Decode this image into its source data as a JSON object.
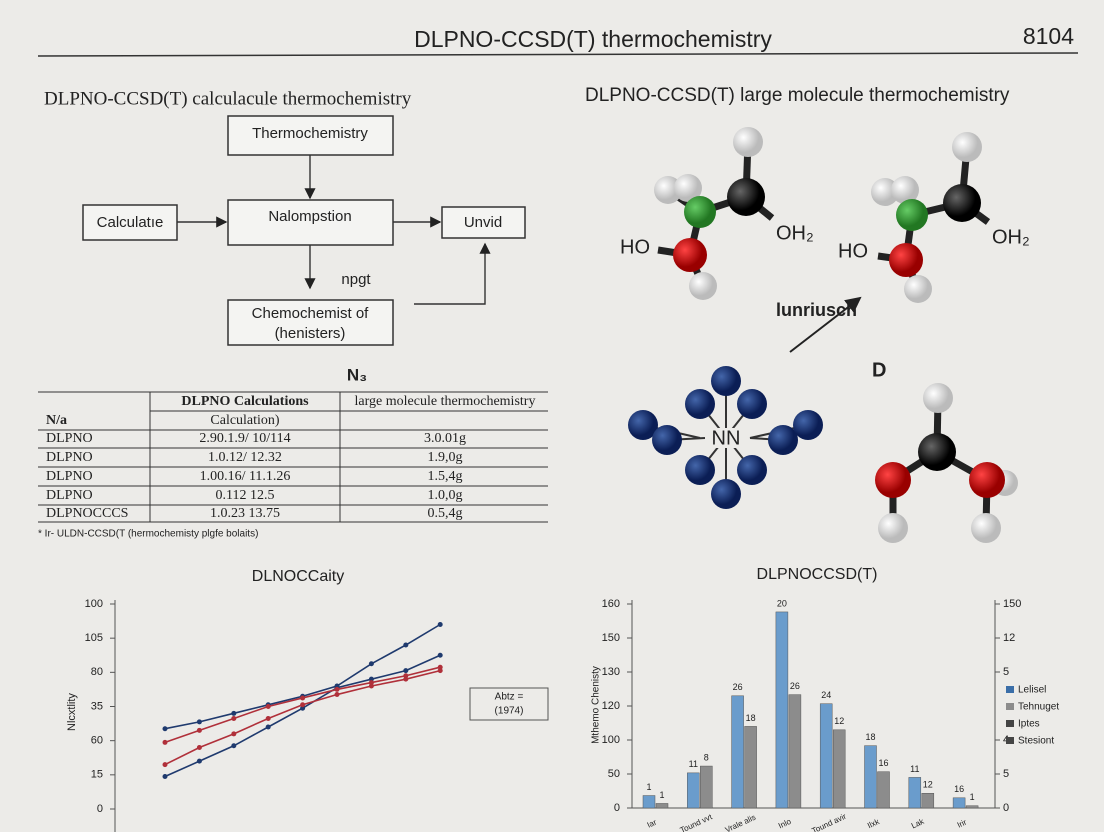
{
  "header": {
    "title": "DLPNO-CCSD(T) thermochemistry",
    "page": "8104"
  },
  "flowchart": {
    "heading": "DLPNO-CCSD(T) calculacule thermochemistry",
    "nodes": [
      [
        "Thermochemistry"
      ],
      [
        "Calculatıe"
      ],
      [
        "Nalompstion"
      ],
      [
        "Unvid"
      ],
      [
        "Chemochemist of",
        "(henisters)"
      ]
    ],
    "edge_label": "npgt"
  },
  "molecules": {
    "heading": "DLPNO-CCSD(T) large molecule thermochemistry",
    "labels": [
      "HO",
      "OH₂",
      "HO",
      "OH₂",
      "lunriusch",
      "NN",
      "D"
    ]
  },
  "table": {
    "caption": "N₃",
    "header": [
      "DLPNO Calculations",
      "large molecule thermochemistry"
    ],
    "subheader": [
      "N/a",
      "Calculation)"
    ],
    "rows": [
      [
        "DLPNO",
        "2.90.1.9/ 10/114",
        "3.0.01g"
      ],
      [
        "DLPNO",
        "1.0.12/ 12.32",
        "1.9,0g"
      ],
      [
        "DLPNO",
        "1.00.16/ 11.1.26",
        "1.5,4g"
      ],
      [
        "DLPNO",
        "0.112 12.5",
        "1.0,0g"
      ],
      [
        "DLPNOCCCS",
        "1.0.23 13.75",
        "0.5,4g"
      ]
    ],
    "footnote": "* Ir- ULDN-CCSD(T (hermochemisty plgfe bolaits)"
  },
  "charts": [
    {
      "type": "line",
      "title": "DLNOCCaity",
      "y_label": "Nlcxtlity",
      "categories": [
        null,
        null,
        null,
        null,
        null,
        null,
        null,
        null,
        null
      ],
      "series": [
        {
          "color": "#1f3a6e",
          "values": [
            47,
            51,
            56,
            61,
            66,
            72,
            85,
            96,
            108
          ]
        },
        {
          "color": "#1f3a6e",
          "values": [
            19,
            28,
            37,
            48,
            59,
            71,
            76,
            81,
            90
          ]
        },
        {
          "color": "#b0303a",
          "values": [
            39,
            46,
            53,
            60,
            65,
            70,
            74,
            78,
            83
          ]
        },
        {
          "color": "#b0303a",
          "values": [
            26,
            36,
            44,
            53,
            61,
            67,
            72,
            76,
            81
          ]
        }
      ],
      "ylim": [
        0,
        120
      ],
      "yticks": [
        0,
        {
          "value": 20,
          "label": "15"
        },
        {
          "value": 40,
          "label": "60"
        },
        {
          "value": 60,
          "label": "35"
        },
        {
          "value": 80,
          "label": "80"
        },
        {
          "value": 100,
          "label": "105"
        },
        {
          "value": 120,
          "label": "100"
        }
      ],
      "annotation": [
        "Abtz =",
        "(1974)"
      ]
    },
    {
      "type": "bar",
      "title": "DLPNOCCSD(T)",
      "y_label": "Mthemo Chenisty",
      "categories": [
        "Iar",
        "Tound vvt",
        "Vrale alis",
        "Inlo",
        "Tound avir",
        "Ilxk",
        "Lak",
        "Irir"
      ],
      "series": [
        {
          "color": "#6a9ccc",
          "values": [
            11,
            31,
            99,
            173,
            92,
            55,
            27,
            9
          ]
        },
        {
          "color": "#8c8c8c",
          "values": [
            4,
            37,
            72,
            100,
            69,
            32,
            13,
            2
          ]
        }
      ],
      "bar_labels": [
        [
          "1",
          "11",
          "26",
          "20",
          "24",
          "18",
          "11",
          "16"
        ],
        [
          "1",
          "8",
          "18",
          "26",
          "12",
          "16",
          "12",
          "1"
        ]
      ],
      "ylim": [
        0,
        180
      ],
      "yticks": [
        0,
        {
          "value": 30,
          "label": "50"
        },
        {
          "value": 60,
          "label": "100"
        },
        {
          "value": 90,
          "label": "120"
        },
        {
          "value": 120,
          "label": "130"
        },
        150,
        {
          "value": 180,
          "label": "160"
        }
      ],
      "y2lim": [
        0,
        180
      ],
      "y2ticks": [
        0,
        {
          "value": 30,
          "label": "5"
        },
        {
          "value": 60,
          "label": "4"
        },
        {
          "value": 120,
          "label": "5"
        },
        {
          "value": 150,
          "label": "12"
        },
        {
          "value": 180,
          "label": "150"
        }
      ],
      "legend": {
        "position": "right",
        "items": [
          {
            "label": "Lelisel",
            "color": "#3a6ea8"
          },
          {
            "label": "Tehnuget",
            "color": "#8c8c8c"
          },
          {
            "label": "Iptes",
            "color": "#444"
          },
          {
            "label": "Stesiont",
            "color": "#444"
          }
        ]
      }
    }
  ]
}
